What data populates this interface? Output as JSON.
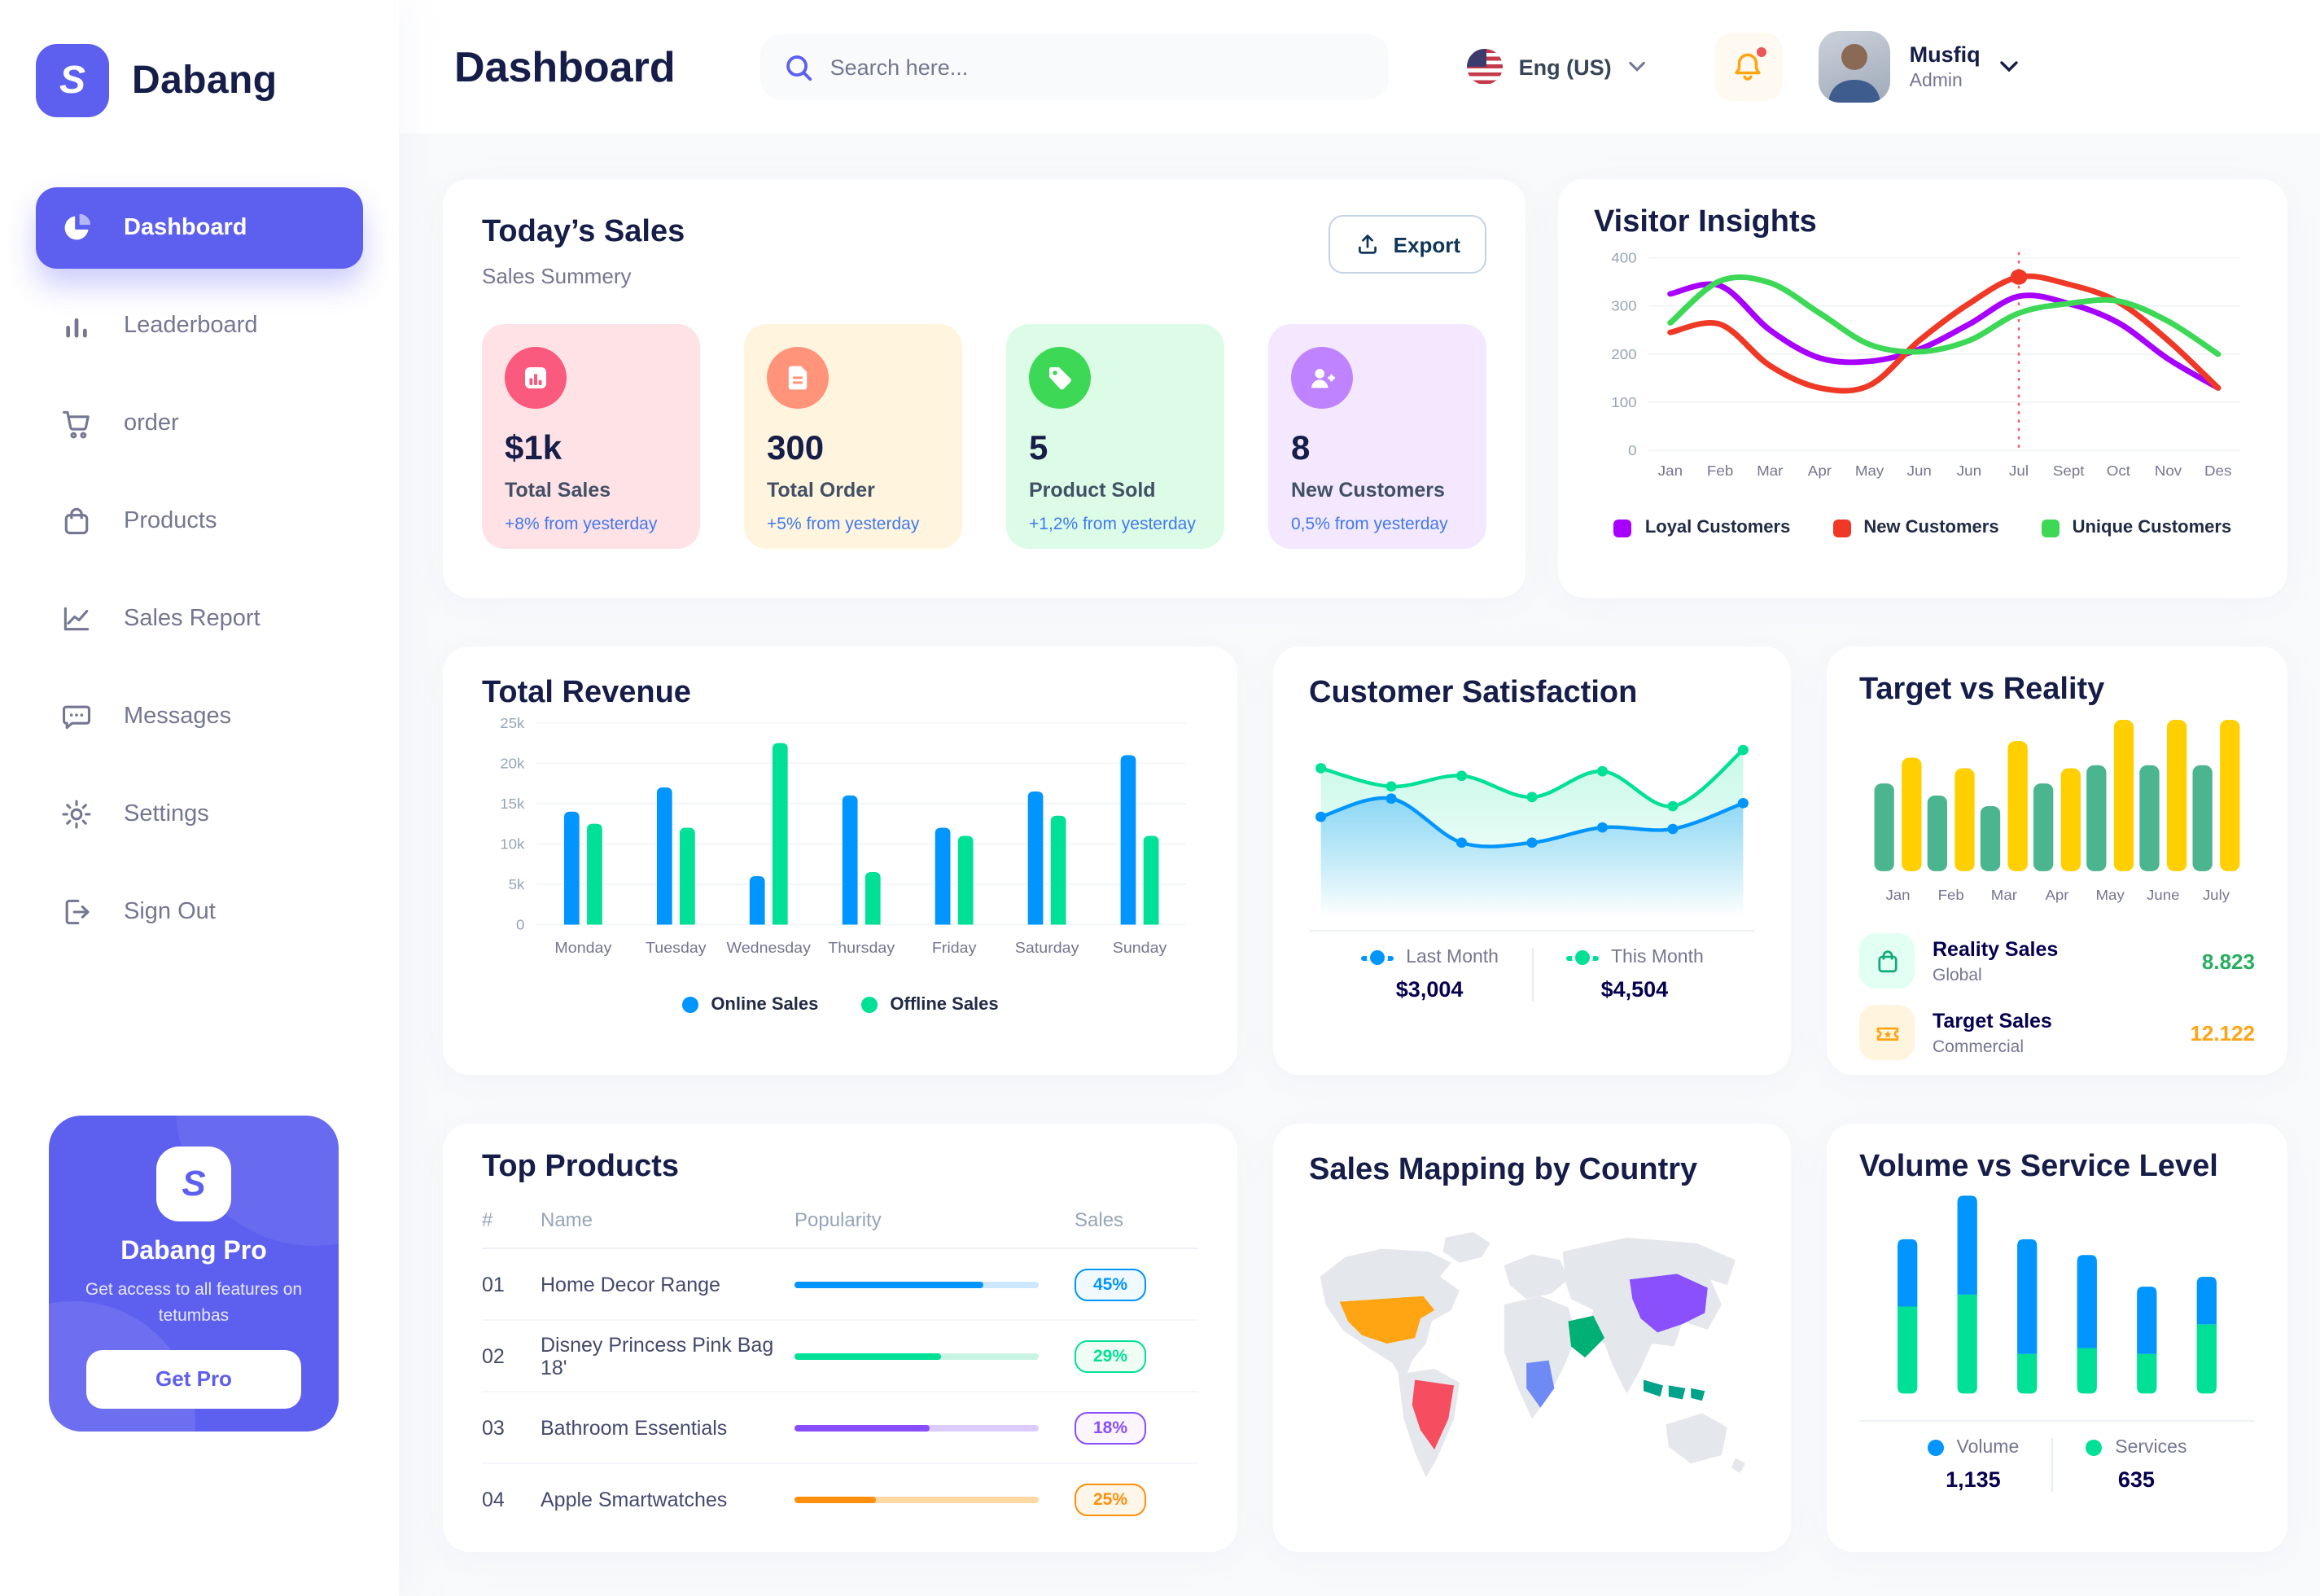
{
  "app": {
    "brand": "Dabang"
  },
  "sidebar": {
    "items": [
      {
        "label": "Dashboard",
        "icon": "dashboard-pie-icon",
        "active": true
      },
      {
        "label": "Leaderboard",
        "icon": "leaderboard-bars-icon",
        "active": false
      },
      {
        "label": "order",
        "icon": "cart-icon",
        "active": false
      },
      {
        "label": "Products",
        "icon": "bag-icon",
        "active": false
      },
      {
        "label": "Sales Report",
        "icon": "line-chart-icon",
        "active": false
      },
      {
        "label": "Messages",
        "icon": "chat-icon",
        "active": false
      },
      {
        "label": "Settings",
        "icon": "gear-icon",
        "active": false
      },
      {
        "label": "Sign Out",
        "icon": "sign-out-icon",
        "active": false
      }
    ],
    "pro": {
      "title": "Dabang Pro",
      "description": "Get access to all features on tetumbas",
      "button_label": "Get Pro"
    }
  },
  "header": {
    "title": "Dashboard",
    "search_placeholder": "Search here...",
    "language": "Eng (US)",
    "has_unread_notification": true,
    "user": {
      "name": "Musfiq",
      "role": "Admin"
    }
  },
  "todays_sales": {
    "title": "Today’s Sales",
    "subtitle": "Sales Summery",
    "export_label": "Export",
    "cards": [
      {
        "value": "$1k",
        "label": "Total Sales",
        "delta": "+8% from yesterday",
        "bg": "#FFE2E5",
        "accent": "#FA5A7D",
        "icon": "bar-chart-icon"
      },
      {
        "value": "300",
        "label": "Total Order",
        "delta": "+5% from yesterday",
        "bg": "#FFF4DE",
        "accent": "#FF947A",
        "icon": "order-file-icon"
      },
      {
        "value": "5",
        "label": "Product Sold",
        "delta": "+1,2% from yesterday",
        "bg": "#DCFCE7",
        "accent": "#3CD856",
        "icon": "tag-icon"
      },
      {
        "value": "8",
        "label": "New Customers",
        "delta": "0,5% from yesterday",
        "bg": "#F3E8FF",
        "accent": "#BF83FF",
        "icon": "user-plus-icon"
      }
    ]
  },
  "visitor_insights": {
    "title": "Visitor Insights",
    "chart_data": {
      "type": "line",
      "x_labels": [
        "Jan",
        "Feb",
        "Mar",
        "Apr",
        "May",
        "Jun",
        "Jun",
        "Jul",
        "Sept",
        "Oct",
        "Nov",
        "Des"
      ],
      "y_ticks": [
        400,
        300,
        200,
        100,
        0
      ],
      "y_max": 400,
      "series": [
        {
          "name": "Loyal Customers",
          "color": "#A700FF",
          "values": [
            325,
            342,
            250,
            192,
            185,
            210,
            262,
            320,
            305,
            265,
            190,
            130
          ]
        },
        {
          "name": "New Customers",
          "color": "#EF3826",
          "values": [
            245,
            262,
            176,
            130,
            135,
            228,
            305,
            360,
            345,
            308,
            228,
            130
          ]
        },
        {
          "name": "Unique Customers",
          "color": "#3CD856",
          "values": [
            265,
            352,
            348,
            285,
            220,
            205,
            228,
            285,
            305,
            310,
            268,
            200
          ]
        }
      ],
      "marker": {
        "x_index": 7,
        "series": "New Customers",
        "value": 360
      }
    }
  },
  "total_revenue": {
    "title": "Total Revenue",
    "chart_data": {
      "type": "bar",
      "categories": [
        "Monday",
        "Tuesday",
        "Wednesday",
        "Thursday",
        "Friday",
        "Saturday",
        "Sunday"
      ],
      "y_tick_labels": [
        "0",
        "5k",
        "10k",
        "15k",
        "20k",
        "25k"
      ],
      "y_max": 25000,
      "series": [
        {
          "name": "Online Sales",
          "color": "#0095FF",
          "values": [
            14000,
            17000,
            6000,
            16000,
            12000,
            16500,
            21000
          ]
        },
        {
          "name": "Offline Sales",
          "color": "#00E096",
          "values": [
            12500,
            12000,
            22500,
            6500,
            11000,
            13500,
            11000
          ]
        }
      ]
    }
  },
  "customer_satisfaction": {
    "title": "Customer Satisfaction",
    "chart_data": {
      "type": "area",
      "series": [
        {
          "name": "Last Month",
          "color": "#0095FF",
          "total": "$3,004",
          "values": [
            44,
            56,
            27,
            27,
            37,
            36,
            53
          ]
        },
        {
          "name": "This Month",
          "color": "#00E096",
          "total": "$4,504",
          "values": [
            76,
            64,
            71,
            57,
            74,
            51,
            88
          ]
        }
      ]
    }
  },
  "target_vs_reality": {
    "title": "Target vs Reality",
    "chart_data": {
      "type": "bar",
      "categories": [
        "Jan",
        "Feb",
        "Mar",
        "Apr",
        "May",
        "June",
        "July"
      ],
      "series": [
        {
          "name": "Reality Sales",
          "color": "#4AB58E",
          "values": [
            58,
            50,
            43,
            58,
            70,
            70,
            70
          ]
        },
        {
          "name": "Target Sales",
          "color": "#FFCF00",
          "values": [
            75,
            68,
            86,
            68,
            100,
            100,
            100
          ]
        }
      ]
    },
    "legend": [
      {
        "label": "Reality Sales",
        "sub": "Global",
        "value": "8.823",
        "value_color": "#27AE60",
        "icon_bg": "#E2FFF3",
        "icon": "shopping-bag-icon"
      },
      {
        "label": "Target Sales",
        "sub": "Commercial",
        "value": "12.122",
        "value_color": "#FFA412",
        "icon_bg": "#FFF4DE",
        "icon": "ticket-icon"
      }
    ]
  },
  "top_products": {
    "title": "Top Products",
    "headers": [
      "#",
      "Name",
      "Popularity",
      "Sales"
    ],
    "rows": [
      {
        "num": "01",
        "name": "Home Decor Range",
        "popularity": 77,
        "color": "#0095FF",
        "track": "#CDE7FF",
        "sales": "45%",
        "badge_bg": "#F0F9FF"
      },
      {
        "num": "02",
        "name": "Disney Princess Pink Bag 18'",
        "popularity": 60,
        "color": "#00E096",
        "track": "#C8F4E4",
        "sales": "29%",
        "badge_bg": "#F0FDF4"
      },
      {
        "num": "03",
        "name": "Bathroom Essentials",
        "popularity": 55,
        "color": "#884DFF",
        "track": "#DCCBFF",
        "sales": "18%",
        "badge_bg": "#FBF5FF"
      },
      {
        "num": "04",
        "name": "Apple Smartwatches",
        "popularity": 33,
        "color": "#FF8F0D",
        "track": "#FFD9A3",
        "sales": "25%",
        "badge_bg": "#FFF6EA"
      }
    ]
  },
  "sales_map": {
    "title": "Sales Mapping by Country",
    "base_color": "#E4E7EC",
    "highlights": {
      "usa": "#FFA412",
      "brazil": "#F64E60",
      "saudi_arabia": "#00B074",
      "dr_congo": "#6E8AF4",
      "china": "#8950FC",
      "indonesia": "#00A389"
    }
  },
  "volume_service": {
    "title": "Volume vs Service Level",
    "chart_data": {
      "type": "stacked-bar",
      "series": [
        {
          "name": "Volume",
          "color": "#0095FF",
          "total": "1,135",
          "values": [
            34,
            50,
            58,
            47,
            34,
            24
          ]
        },
        {
          "name": "Services",
          "color": "#00E096",
          "total": "635",
          "values": [
            44,
            50,
            20,
            23,
            20,
            35
          ]
        }
      ]
    }
  }
}
